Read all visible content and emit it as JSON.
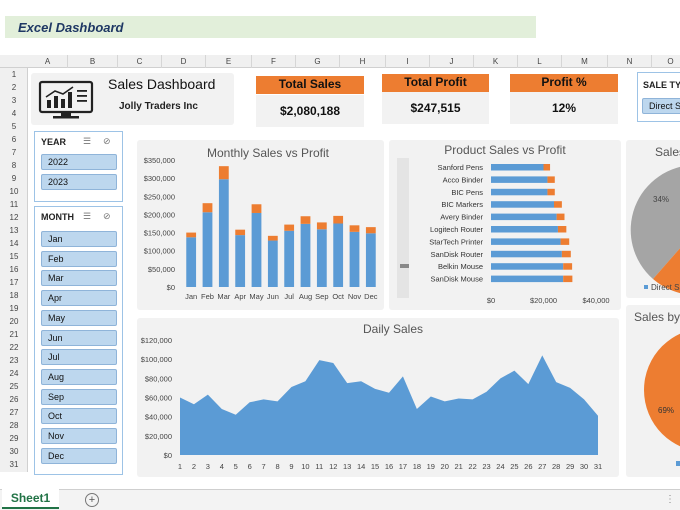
{
  "banner": {
    "title": "Excel Dashboard"
  },
  "columns": [
    "A",
    "B",
    "C",
    "D",
    "E",
    "F",
    "G",
    "H",
    "I",
    "J",
    "K",
    "L",
    "M",
    "N",
    "O"
  ],
  "rows": [
    "1",
    "2",
    "3",
    "4",
    "5",
    "6",
    "7",
    "8",
    "9",
    "10",
    "11",
    "12",
    "13",
    "14",
    "15",
    "16",
    "17",
    "18",
    "19",
    "20",
    "21",
    "22",
    "23",
    "24",
    "25",
    "26",
    "27",
    "28",
    "29",
    "30",
    "31"
  ],
  "header": {
    "title": "Sales Dashboard",
    "company": "Jolly Traders Inc"
  },
  "kpis": [
    {
      "label": "Total Sales",
      "value": "$2,080,188"
    },
    {
      "label": "Total Profit",
      "value": "$247,515"
    },
    {
      "label": "Profit %",
      "value": "12%"
    }
  ],
  "sale_type_slicer": {
    "label": "SALE TY",
    "item": "Direct S"
  },
  "year_slicer": {
    "title": "YEAR",
    "items": [
      "2022",
      "2023"
    ]
  },
  "month_slicer": {
    "title": "MONTH",
    "items": [
      "Jan",
      "Feb",
      "Mar",
      "Apr",
      "May",
      "Jun",
      "Jul",
      "Aug",
      "Sep",
      "Oct",
      "Nov",
      "Dec"
    ]
  },
  "colors": {
    "sales": "#5b9bd5",
    "profit": "#ed7d31",
    "card": "#f2f2f2",
    "banner": "#e2efda"
  },
  "chart_data": [
    {
      "type": "bar",
      "title": "Monthly Sales vs Profit",
      "categories": [
        "Jan",
        "Feb",
        "Mar",
        "Apr",
        "May",
        "Jun",
        "Jul",
        "Aug",
        "Sep",
        "Oct",
        "Nov",
        "Dec"
      ],
      "series": [
        {
          "name": "Sales",
          "values": [
            137000,
            206000,
            297000,
            143000,
            204000,
            128000,
            155000,
            174000,
            159000,
            175000,
            152000,
            148000
          ]
        },
        {
          "name": "Profit",
          "values": [
            13000,
            25000,
            36000,
            15000,
            24000,
            13000,
            17000,
            21000,
            19000,
            21000,
            18000,
            17000
          ]
        }
      ],
      "yticks": [
        "$0",
        "$50,000",
        "$100,000",
        "$150,000",
        "$200,000",
        "$250,000",
        "$300,000",
        "$350,000"
      ],
      "ylim": [
        0,
        350000
      ],
      "stacked": true
    },
    {
      "type": "bar",
      "orientation": "horizontal",
      "title": "Product Sales vs Profit",
      "categories": [
        "Sanford Pens",
        "Acco Binder",
        "BIC Pens",
        "BIC Markers",
        "Avery Binder",
        "Logitech Router",
        "StarTech Printer",
        "SanDisk Router",
        "Belkin Mouse",
        "SanDisk Mouse"
      ],
      "series": [
        {
          "name": "Sales",
          "values": [
            20000,
            21500,
            21500,
            24000,
            25000,
            25500,
            26500,
            27000,
            27500,
            27500
          ]
        },
        {
          "name": "Profit",
          "values": [
            2500,
            2800,
            2800,
            3000,
            3000,
            3200,
            3300,
            3400,
            3400,
            3500
          ]
        }
      ],
      "xticks": [
        "$0",
        "$20,000",
        "$40,000"
      ],
      "xlim": [
        0,
        40000
      ],
      "stacked": true
    },
    {
      "type": "area",
      "title": "Daily Sales",
      "x": [
        1,
        2,
        3,
        4,
        5,
        6,
        7,
        8,
        9,
        10,
        11,
        12,
        13,
        14,
        15,
        16,
        17,
        18,
        19,
        20,
        21,
        22,
        23,
        24,
        25,
        26,
        27,
        28,
        29,
        30,
        31
      ],
      "values": [
        60000,
        53000,
        63000,
        48000,
        42000,
        55000,
        58000,
        56000,
        71000,
        77000,
        99000,
        96000,
        75000,
        77000,
        69000,
        65000,
        82000,
        48000,
        61000,
        56000,
        59000,
        58000,
        66000,
        80000,
        88000,
        74000,
        104000,
        76000,
        70000,
        58000,
        41000
      ],
      "yticks": [
        "$0",
        "$20,000",
        "$40,000",
        "$60,000",
        "$80,000",
        "$100,000",
        "$120,000"
      ],
      "ylim": [
        0,
        120000
      ]
    },
    {
      "type": "pie",
      "title": "Sales",
      "labels": [
        "34%"
      ],
      "legend": "Direct Sa"
    },
    {
      "type": "pie",
      "title": "Sales by",
      "labels": [
        "69%"
      ]
    }
  ]
}
